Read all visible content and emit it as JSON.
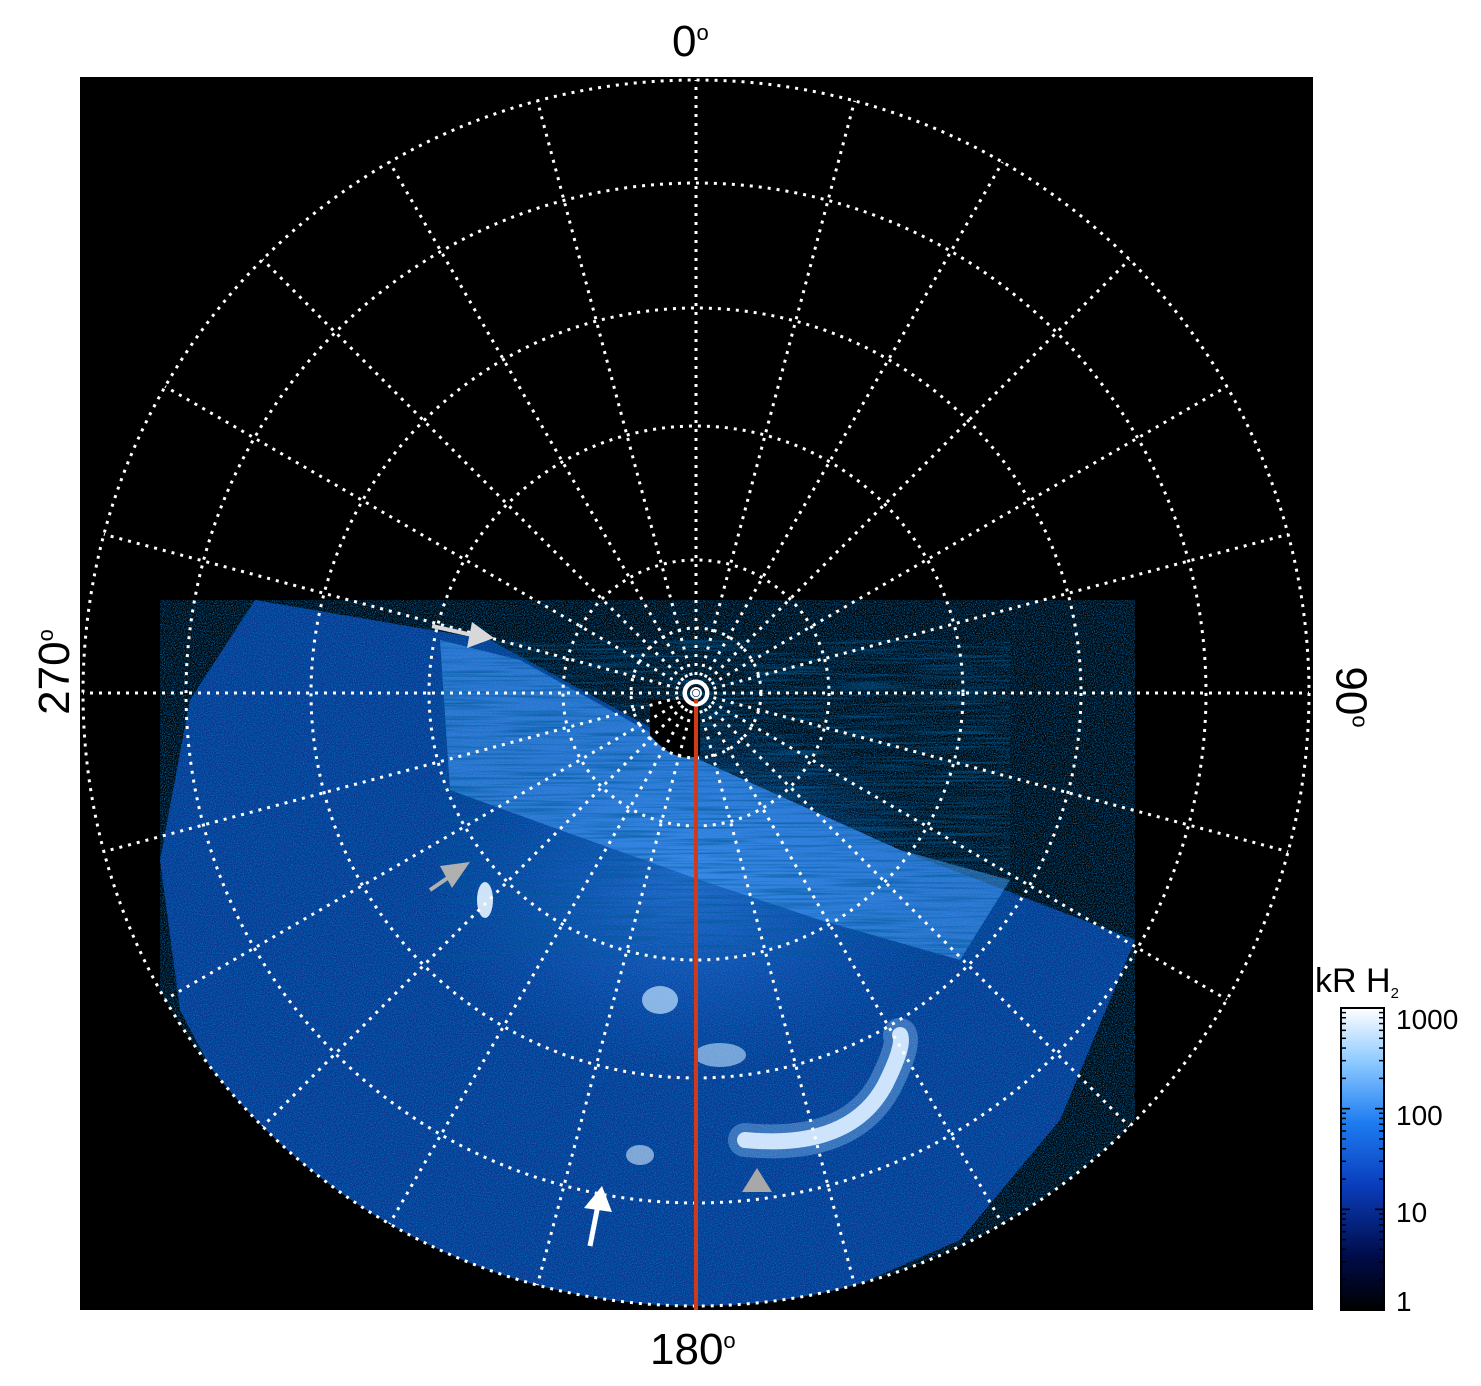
{
  "polar_labels": {
    "top": "0",
    "right": "90",
    "bottom": "180",
    "left": "270",
    "degree_symbol": "o"
  },
  "colorbar": {
    "title_main": "kR H",
    "title_sub": "2",
    "ticks": [
      "1000",
      "100",
      "10",
      "1"
    ],
    "scale": "log",
    "colors": [
      "#000000",
      "#000c4a",
      "#0a3fbf",
      "#1e7cf0",
      "#8cc9ff",
      "#ffffff"
    ]
  },
  "colors": {
    "background": "#000000",
    "grid": "#ffffff",
    "meridian_line": "#d03a1c",
    "aurora_base": "#1f6fe6",
    "aurora_bright": "#e6f4ff",
    "arrow_white": "#ffffff",
    "arrow_gray": "#b0b0b0"
  },
  "annotations": {
    "arrows": [
      "white-arrow-top",
      "gray-arrow-left",
      "gray-arrow-bottom",
      "white-arrow-bottom"
    ]
  }
}
